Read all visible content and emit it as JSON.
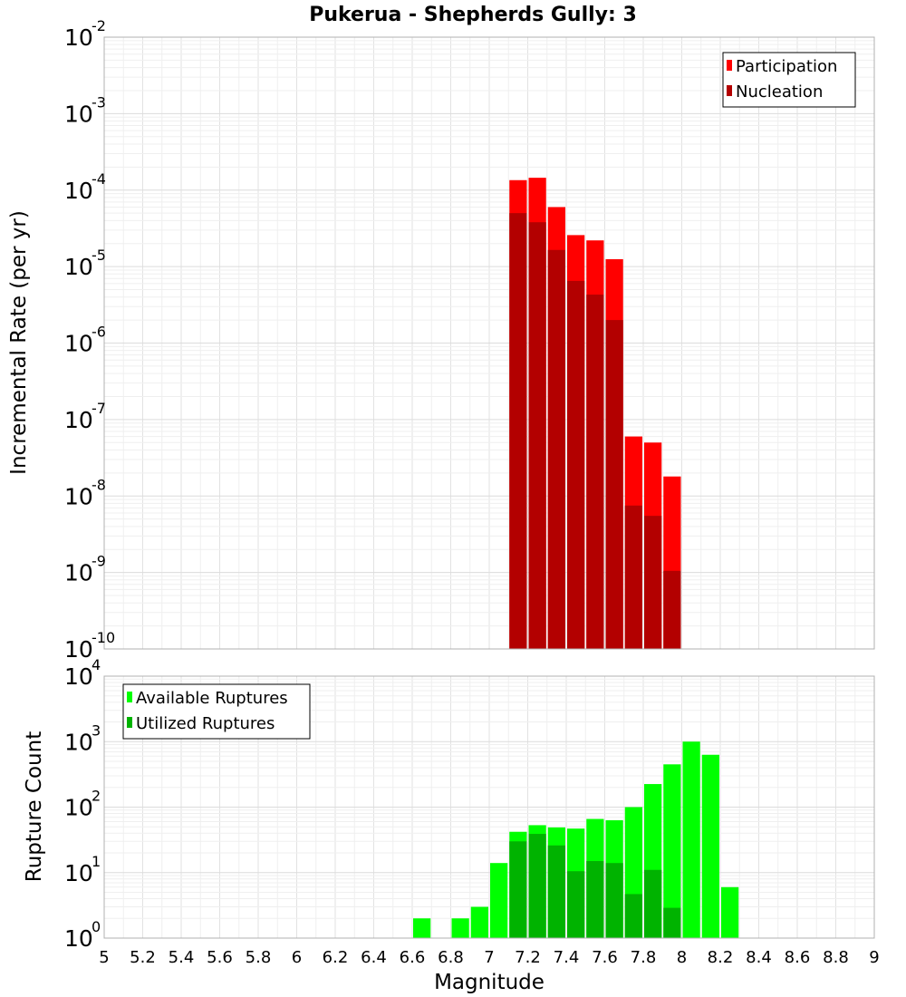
{
  "chart_data": [
    {
      "type": "bar",
      "title": "Pukerua - Shepherds Gully: 3",
      "xlabel": "",
      "ylabel": "Incremental Rate (per yr)",
      "yscale": "log",
      "ylim_exponents": [
        -10,
        -2
      ],
      "xlim": [
        5,
        9
      ],
      "grid": true,
      "legend_placement": "top-right",
      "bin_width": 0.1,
      "series": [
        {
          "name": "Participation",
          "color": "#ff0000",
          "x": [
            7.15,
            7.25,
            7.35,
            7.45,
            7.55,
            7.65,
            7.75,
            7.85,
            7.95
          ],
          "values": [
            0.000135,
            0.000145,
            6e-05,
            2.58e-05,
            2.2e-05,
            1.25e-05,
            6e-08,
            5e-08,
            1.8e-08
          ]
        },
        {
          "name": "Nucleation",
          "color": "#b30000",
          "x": [
            7.15,
            7.25,
            7.35,
            7.45,
            7.55,
            7.65,
            7.75,
            7.85,
            7.95
          ],
          "values": [
            5e-05,
            3.8e-05,
            1.65e-05,
            6.5e-06,
            4.3e-06,
            2e-06,
            7.5e-09,
            5.5e-09,
            1.05e-09
          ]
        }
      ]
    },
    {
      "type": "bar",
      "title": "",
      "xlabel": "Magnitude",
      "ylabel": "Rupture Count",
      "yscale": "log",
      "ylim_exponents": [
        0,
        4
      ],
      "xlim": [
        5,
        9
      ],
      "grid": true,
      "legend_placement": "top-left",
      "bin_width": 0.1,
      "x_ticks": [
        "5",
        "5.2",
        "5.4",
        "5.6",
        "5.8",
        "6",
        "6.2",
        "6.4",
        "6.6",
        "6.8",
        "7",
        "7.2",
        "7.4",
        "7.6",
        "7.8",
        "8",
        "8.2",
        "8.4",
        "8.6",
        "8.8",
        "9"
      ],
      "series": [
        {
          "name": "Available Ruptures",
          "color": "#00ff00",
          "x": [
            6.65,
            6.85,
            6.95,
            7.05,
            7.15,
            7.25,
            7.35,
            7.45,
            7.55,
            7.65,
            7.75,
            7.85,
            7.95,
            8.05,
            8.15,
            8.25
          ],
          "values": [
            2,
            2,
            3,
            14,
            42,
            53,
            49,
            47,
            66,
            63,
            100,
            225,
            450,
            1000,
            630,
            6
          ]
        },
        {
          "name": "Utilized Ruptures",
          "color": "#00b300",
          "x": [
            7.15,
            7.25,
            7.35,
            7.45,
            7.55,
            7.65,
            7.75,
            7.85,
            7.95
          ],
          "values": [
            30,
            39,
            26,
            10.5,
            15,
            14,
            4.7,
            11,
            2.9
          ]
        }
      ]
    }
  ]
}
